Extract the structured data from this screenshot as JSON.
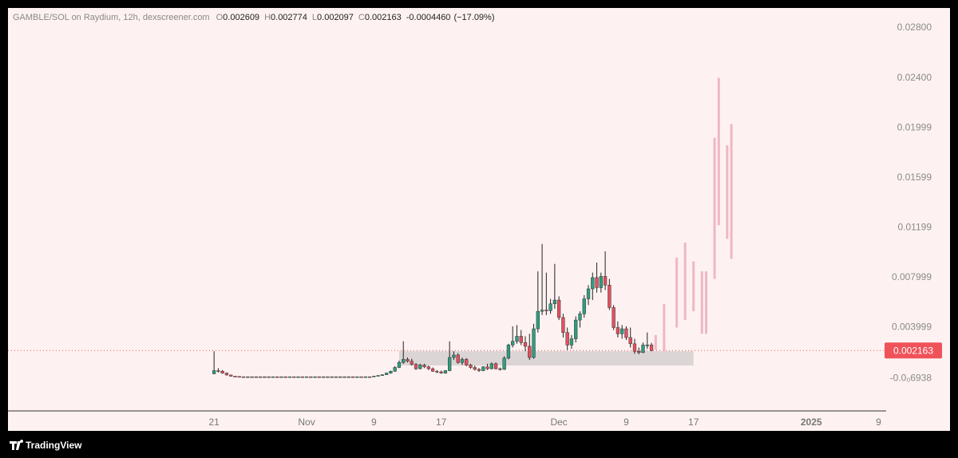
{
  "chart_data": {
    "type": "candlestick",
    "title": "GAMBLE/SOL on Raydium, 12h, dexscreener.com",
    "ohlc_labels": [
      "O",
      "H",
      "L",
      "C"
    ],
    "change_label": "-0.0004460",
    "change_pct_label": "(−17.09%)",
    "branding": "TradingView",
    "categories": [
      null,
      null,
      null,
      null,
      null,
      null,
      null,
      null,
      null,
      null,
      null,
      null,
      null,
      null,
      null,
      null,
      null,
      null,
      null,
      null,
      null,
      null,
      null,
      null,
      null,
      null,
      null,
      null,
      null,
      null,
      null,
      null,
      null,
      null,
      null,
      null,
      null,
      null,
      null,
      null,
      null,
      null,
      null,
      null,
      null,
      null,
      null,
      null,
      null,
      null,
      null,
      null,
      null,
      null,
      null,
      null,
      null,
      null,
      null,
      null,
      null,
      null,
      null,
      null,
      null,
      null,
      null,
      null,
      null,
      null,
      null,
      null,
      null,
      null,
      null,
      null,
      null,
      null,
      null,
      null,
      null,
      null,
      null,
      null,
      null,
      null,
      null,
      null,
      null,
      null,
      null,
      null,
      null,
      null,
      null,
      null,
      null,
      null,
      null,
      null,
      null,
      null,
      null,
      null,
      null
    ],
    "open": [
      0.0003,
      0.00055,
      0.0005,
      0.00035,
      0.0002,
      0.0001,
      8e-05,
      6e-05,
      5e-05,
      6e-05,
      5e-05,
      6e-05,
      5e-05,
      6e-05,
      5e-05,
      6e-05,
      5e-05,
      6e-05,
      5e-05,
      6e-05,
      5e-05,
      6e-05,
      5e-05,
      6e-05,
      5e-05,
      6e-05,
      5e-05,
      6e-05,
      5e-05,
      6e-05,
      5e-05,
      6e-05,
      5e-05,
      6e-05,
      5e-05,
      6e-05,
      5e-05,
      6e-05,
      5e-05,
      0.00011,
      0.00016,
      0.00022,
      0.00035,
      0.0005,
      0.0008,
      0.0012,
      0.00145,
      0.0013,
      0.00105,
      0.0007,
      0.001,
      0.00085,
      0.0007,
      0.0005,
      0.00045,
      0.00035,
      0.00055,
      0.0016,
      0.0018,
      0.0012,
      0.00145,
      0.001,
      0.0008,
      0.00065,
      0.00055,
      0.00085,
      0.0007,
      0.0011,
      0.0007,
      0.00065,
      0.00155,
      0.0026,
      0.0029,
      0.0033,
      0.0028,
      0.0025,
      0.0016,
      0.0039,
      0.0053,
      0.0054,
      0.00535,
      0.0059,
      0.0062,
      0.0048,
      0.0036,
      0.0026,
      0.0031,
      0.0046,
      0.0051,
      0.0063,
      0.0071,
      0.008,
      0.0072,
      0.0081,
      0.0074,
      0.0056,
      0.004,
      0.0035,
      0.0039,
      0.0032,
      0.0027,
      0.0021,
      0.002,
      0.0026,
      0.002609
    ],
    "high": [
      0.0021,
      0.00075,
      0.0006,
      0.0004,
      0.00022,
      0.00012,
      9e-05,
      7e-05,
      7e-05,
      7e-05,
      7e-05,
      7e-05,
      7e-05,
      7e-05,
      7e-05,
      7e-05,
      7e-05,
      7e-05,
      7e-05,
      7e-05,
      7e-05,
      7e-05,
      7e-05,
      7e-05,
      7e-05,
      7e-05,
      7e-05,
      7e-05,
      7e-05,
      7e-05,
      7e-05,
      7e-05,
      7e-05,
      7e-05,
      7e-05,
      7e-05,
      7e-05,
      7e-05,
      0.00012,
      0.00018,
      0.00025,
      0.0004,
      0.00055,
      0.0009,
      0.00135,
      0.0029,
      0.0016,
      0.0015,
      0.00115,
      0.0011,
      0.0011,
      0.00095,
      0.0008,
      0.0006,
      0.00055,
      0.0006,
      0.0029,
      0.0021,
      0.00195,
      0.0016,
      0.00155,
      0.0011,
      0.00095,
      0.00075,
      0.0009,
      0.0011,
      0.0012,
      0.0012,
      0.0008,
      0.0017,
      0.0027,
      0.0041,
      0.0042,
      0.0038,
      0.0033,
      0.0035,
      0.0043,
      0.0085,
      0.0107,
      0.0084,
      0.0063,
      0.0091,
      0.0065,
      0.0051,
      0.004,
      0.0034,
      0.0049,
      0.0053,
      0.0066,
      0.0074,
      0.0084,
      0.0092,
      0.0084,
      0.0101,
      0.0079,
      0.0058,
      0.0045,
      0.0042,
      0.0041,
      0.004,
      0.0031,
      0.0024,
      0.0028,
      0.0036,
      0.002774
    ],
    "low": [
      0.00025,
      0.0004,
      0.0003,
      0.00015,
      8e-05,
      6e-05,
      5e-05,
      4e-05,
      4e-05,
      4e-05,
      4e-05,
      4e-05,
      4e-05,
      4e-05,
      4e-05,
      4e-05,
      4e-05,
      4e-05,
      4e-05,
      4e-05,
      4e-05,
      4e-05,
      4e-05,
      4e-05,
      4e-05,
      4e-05,
      4e-05,
      4e-05,
      4e-05,
      4e-05,
      4e-05,
      4e-05,
      4e-05,
      4e-05,
      4e-05,
      4e-05,
      4e-05,
      4e-05,
      4e-05,
      0.0001,
      0.00014,
      0.0002,
      0.0003,
      0.00045,
      0.00075,
      0.0011,
      0.0012,
      0.00095,
      0.0006,
      0.00065,
      0.00075,
      0.0006,
      0.00045,
      0.00035,
      0.0003,
      0.0003,
      0.0005,
      0.0014,
      0.0011,
      0.001,
      0.0009,
      0.0007,
      0.00055,
      0.00045,
      0.0005,
      0.0006,
      0.00065,
      0.00065,
      0.00055,
      0.0006,
      0.00145,
      0.0024,
      0.0027,
      0.0026,
      0.0021,
      0.0014,
      0.0015,
      0.0036,
      0.005,
      0.005,
      0.0051,
      0.0055,
      0.0046,
      0.0032,
      0.0022,
      0.0023,
      0.0028,
      0.004,
      0.0048,
      0.0058,
      0.0062,
      0.0068,
      0.0068,
      0.007,
      0.0054,
      0.0038,
      0.0032,
      0.0031,
      0.003,
      0.0024,
      0.0019,
      0.00185,
      0.00195,
      0.0023,
      0.002097
    ],
    "close": [
      0.00055,
      0.0005,
      0.00035,
      0.0002,
      0.0001,
      8e-05,
      6e-05,
      5e-05,
      6e-05,
      5e-05,
      6e-05,
      5e-05,
      6e-05,
      5e-05,
      6e-05,
      5e-05,
      6e-05,
      5e-05,
      6e-05,
      5e-05,
      6e-05,
      5e-05,
      6e-05,
      5e-05,
      6e-05,
      5e-05,
      6e-05,
      5e-05,
      6e-05,
      5e-05,
      6e-05,
      5e-05,
      6e-05,
      5e-05,
      6e-05,
      5e-05,
      6e-05,
      5e-05,
      0.00011,
      0.00016,
      0.00022,
      0.00035,
      0.0005,
      0.0008,
      0.0012,
      0.00145,
      0.0013,
      0.00105,
      0.0007,
      0.001,
      0.00085,
      0.0007,
      0.0005,
      0.00045,
      0.00035,
      0.00055,
      0.0016,
      0.0018,
      0.0012,
      0.00145,
      0.001,
      0.0008,
      0.00065,
      0.00055,
      0.00085,
      0.0007,
      0.0011,
      0.0007,
      0.00065,
      0.00155,
      0.0026,
      0.0029,
      0.0033,
      0.0028,
      0.0025,
      0.0016,
      0.0039,
      0.0053,
      0.0054,
      0.00535,
      0.0059,
      0.0062,
      0.0048,
      0.0036,
      0.0026,
      0.0031,
      0.0046,
      0.0051,
      0.0063,
      0.0071,
      0.008,
      0.0072,
      0.0081,
      0.0074,
      0.0056,
      0.004,
      0.0035,
      0.0039,
      0.0032,
      0.0027,
      0.0021,
      0.002,
      0.0026,
      0.002609,
      0.002163
    ],
    "up_color": "#2e9e7f",
    "down_color": "#e4505f",
    "wick_color": "#222222",
    "projection": {
      "color": "#f0b6c4",
      "x": [
        105,
        107,
        110,
        112,
        114,
        116,
        117,
        119,
        120,
        122,
        123
      ],
      "low": [
        0.0022,
        0.0021,
        0.004,
        0.0046,
        0.0053,
        0.0035,
        0.0035,
        0.0079,
        0.0122,
        0.0111,
        0.0095
      ],
      "high": [
        0.0034,
        0.0059,
        0.0096,
        0.0108,
        0.0093,
        0.0085,
        0.0085,
        0.0192,
        0.024,
        0.0186,
        0.0203
      ]
    },
    "zone": {
      "color": "#d6d0d0",
      "x": [
        44,
        114
      ],
      "y": [
        0.00096,
        0.00211
      ]
    },
    "xlim": [
      -49,
      159.8
    ],
    "xticks": [
      {
        "value": 0,
        "label": "21"
      },
      {
        "value": 22,
        "label": "Nov"
      },
      {
        "value": 38,
        "label": "9"
      },
      {
        "value": 54,
        "label": "17"
      },
      {
        "value": 82,
        "label": "Dec"
      },
      {
        "value": 98,
        "label": "9"
      },
      {
        "value": 114,
        "label": "17"
      },
      {
        "value": 142,
        "label": "2025"
      },
      {
        "value": 158,
        "label": "9"
      }
    ],
    "ylim": [
      -0.00268,
      0.0296
    ],
    "yticks": [
      {
        "value": 0.028,
        "label": "0.02800"
      },
      {
        "value": 0.024,
        "label": "0.02400"
      },
      0.01999,
      0.01599,
      0.01199,
      0.007999,
      0.003999,
      {
        "value": -6.938e-05,
        "label": "-0.0₀6938"
      }
    ],
    "grid": false,
    "last_price_color": "#f0525a"
  }
}
